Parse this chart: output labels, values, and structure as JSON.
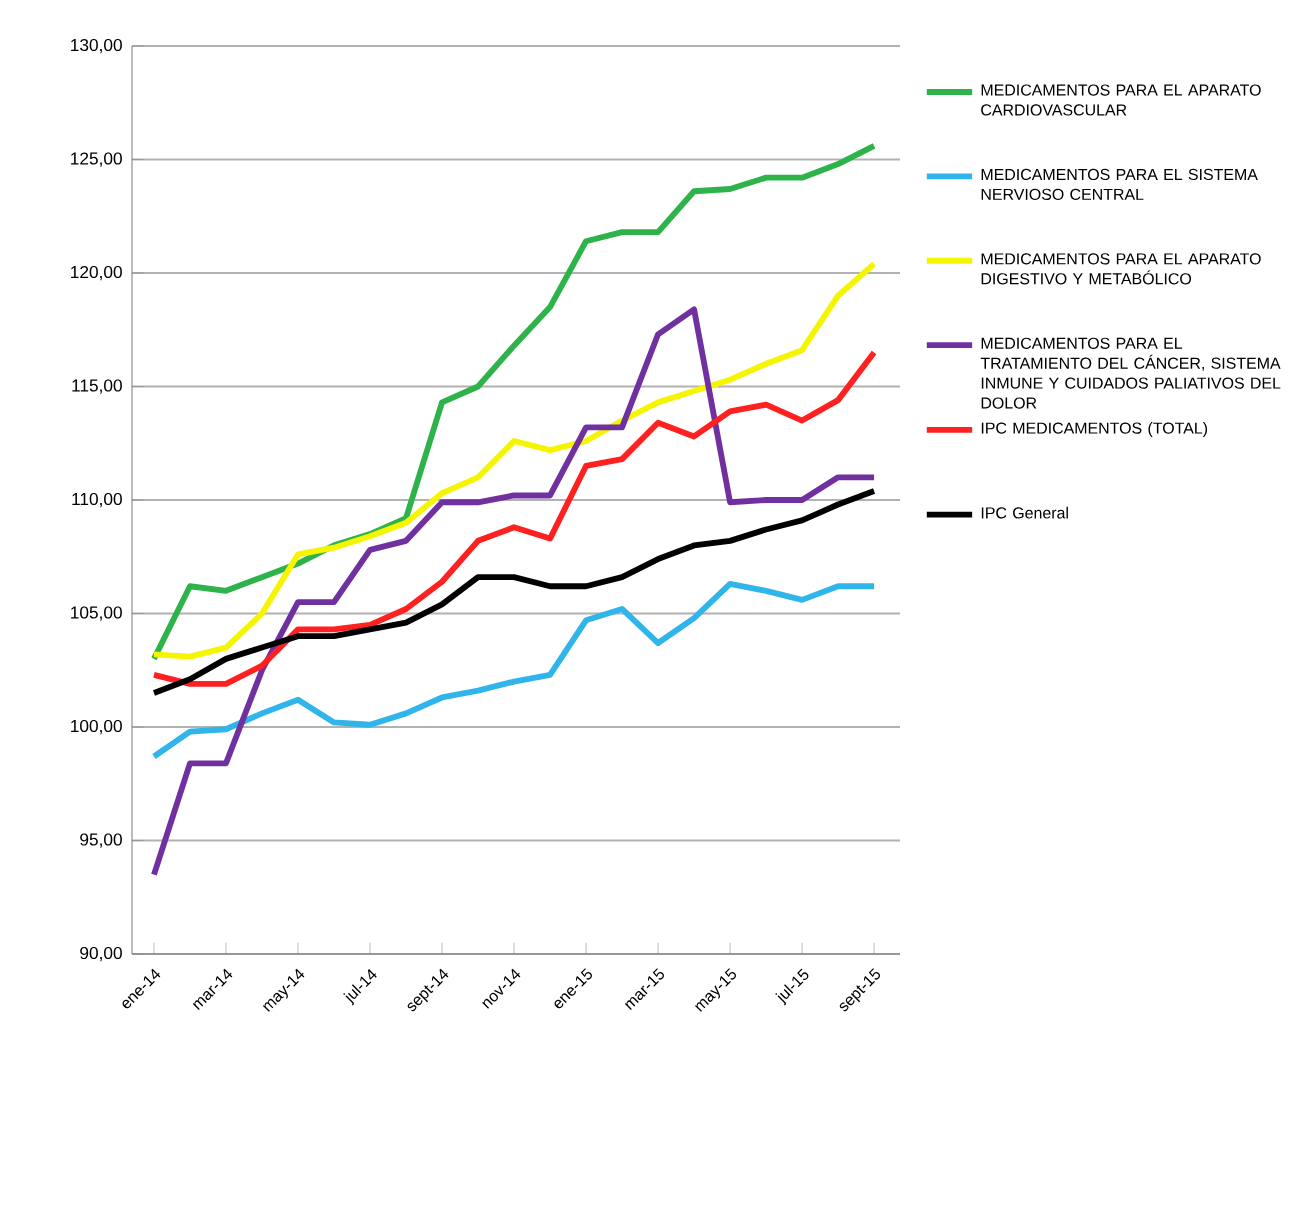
{
  "chart_data": {
    "type": "line",
    "categories": [
      "ene-14",
      null,
      "mar-14",
      null,
      "may-14",
      null,
      "jul-14",
      null,
      "sept-14",
      null,
      "nov-14",
      null,
      "ene-15",
      null,
      "mar-15",
      null,
      "may-15",
      null,
      "jul-15",
      null,
      "sept-15"
    ],
    "series": [
      {
        "name": "MEDICAMENTOS PARA EL APARATO CARDIOVASCULAR",
        "color": "#2db34a",
        "values": [
          103.0,
          106.2,
          106.0,
          106.6,
          107.2,
          108.0,
          108.5,
          109.2,
          114.3,
          115.0,
          116.8,
          118.5,
          121.4,
          121.8,
          121.8,
          123.6,
          123.7,
          124.2,
          124.2,
          124.8,
          125.6
        ]
      },
      {
        "name": "MEDICAMENTOS PARA EL SISTEMA NERVIOSO CENTRAL",
        "color": "#2fb5ea",
        "values": [
          98.7,
          99.8,
          99.9,
          100.6,
          101.2,
          100.2,
          100.1,
          100.6,
          101.3,
          101.6,
          102.0,
          102.3,
          104.7,
          105.2,
          103.7,
          104.8,
          106.3,
          106.0,
          105.6,
          106.2,
          106.2
        ]
      },
      {
        "name": "MEDICAMENTOS PARA EL APARATO DIGESTIVO Y METABÓLICO",
        "color": "#f5f500",
        "values": [
          103.2,
          103.1,
          103.5,
          105.0,
          107.6,
          107.9,
          108.4,
          109.0,
          110.3,
          111.0,
          112.6,
          112.2,
          112.6,
          113.5,
          114.3,
          114.8,
          115.3,
          116.0,
          116.6,
          119.0,
          120.4
        ]
      },
      {
        "name": "MEDICAMENTOS PARA EL TRATAMIENTO DEL CÁNCER, SISTEMA INMUNE Y CUIDADOS PALIATIVOS DEL DOLOR",
        "color": "#7030a0",
        "values": [
          93.5,
          98.4,
          98.4,
          102.5,
          105.5,
          105.5,
          107.8,
          108.2,
          109.9,
          109.9,
          110.2,
          110.2,
          113.2,
          113.2,
          117.3,
          118.4,
          109.9,
          110.0,
          110.0,
          111.0,
          111.0
        ]
      },
      {
        "name": "IPC MEDICAMENTOS (TOTAL)",
        "color": "#ff2020",
        "values": [
          102.3,
          101.9,
          101.9,
          102.7,
          104.3,
          104.3,
          104.5,
          105.2,
          106.4,
          108.2,
          108.8,
          108.3,
          111.5,
          111.8,
          113.4,
          112.8,
          113.9,
          114.2,
          113.5,
          114.4,
          116.5
        ]
      },
      {
        "name": "IPC General",
        "color": "#000000",
        "values": [
          101.5,
          102.1,
          103.0,
          103.5,
          104.0,
          104.0,
          104.3,
          104.6,
          105.4,
          106.6,
          106.6,
          106.2,
          106.2,
          106.6,
          107.4,
          108.0,
          108.2,
          108.7,
          109.1,
          109.8,
          110.4
        ]
      }
    ],
    "ylim": [
      90,
      130
    ],
    "yticks": [
      {
        "value": 90,
        "label": "90,00"
      },
      {
        "value": 95,
        "label": "95,00"
      },
      {
        "value": 100,
        "label": "100,00"
      },
      {
        "value": 105,
        "label": "105,00"
      },
      {
        "value": 110,
        "label": "110,00"
      },
      {
        "value": 115,
        "label": "115,00"
      },
      {
        "value": 120,
        "label": "120,00"
      },
      {
        "value": 125,
        "label": "125,00"
      },
      {
        "value": 130,
        "label": "130,00"
      }
    ],
    "grid": "y",
    "legend": "right",
    "marker": "none",
    "line_style": "solid"
  }
}
